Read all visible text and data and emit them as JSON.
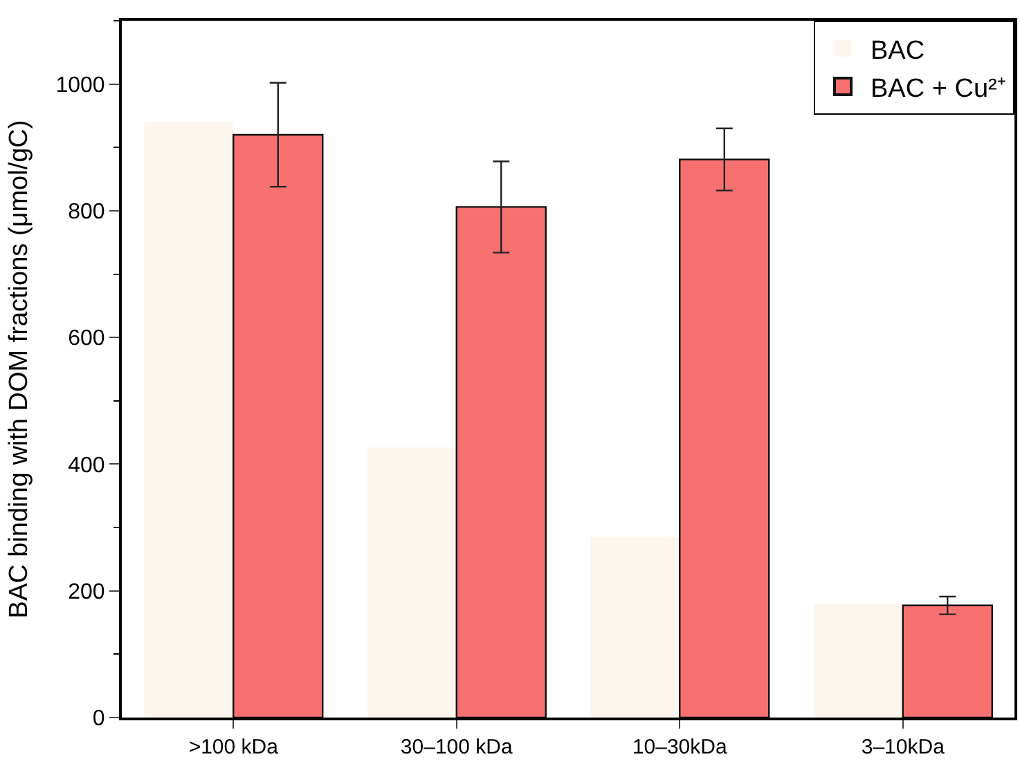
{
  "chart_data": {
    "type": "bar",
    "ylabel": "BAC binding with DOM fractions (μmol/gC)",
    "categories": [
      ">100 kDa",
      "30–100 kDa",
      "10–30kDa",
      "3–10kDa"
    ],
    "series": [
      {
        "name": "BAC",
        "color": "#fdf6ee",
        "values": [
          940,
          426,
          285,
          180
        ]
      },
      {
        "name": "BAC + Cu²⁺",
        "color": "#f87171",
        "values": [
          920,
          806,
          881,
          177
        ],
        "errors": [
          82,
          72,
          49,
          14
        ]
      }
    ],
    "ylim": [
      0,
      1100
    ],
    "yticks": [
      0,
      200,
      400,
      600,
      800,
      1000
    ],
    "legend": "top right"
  }
}
